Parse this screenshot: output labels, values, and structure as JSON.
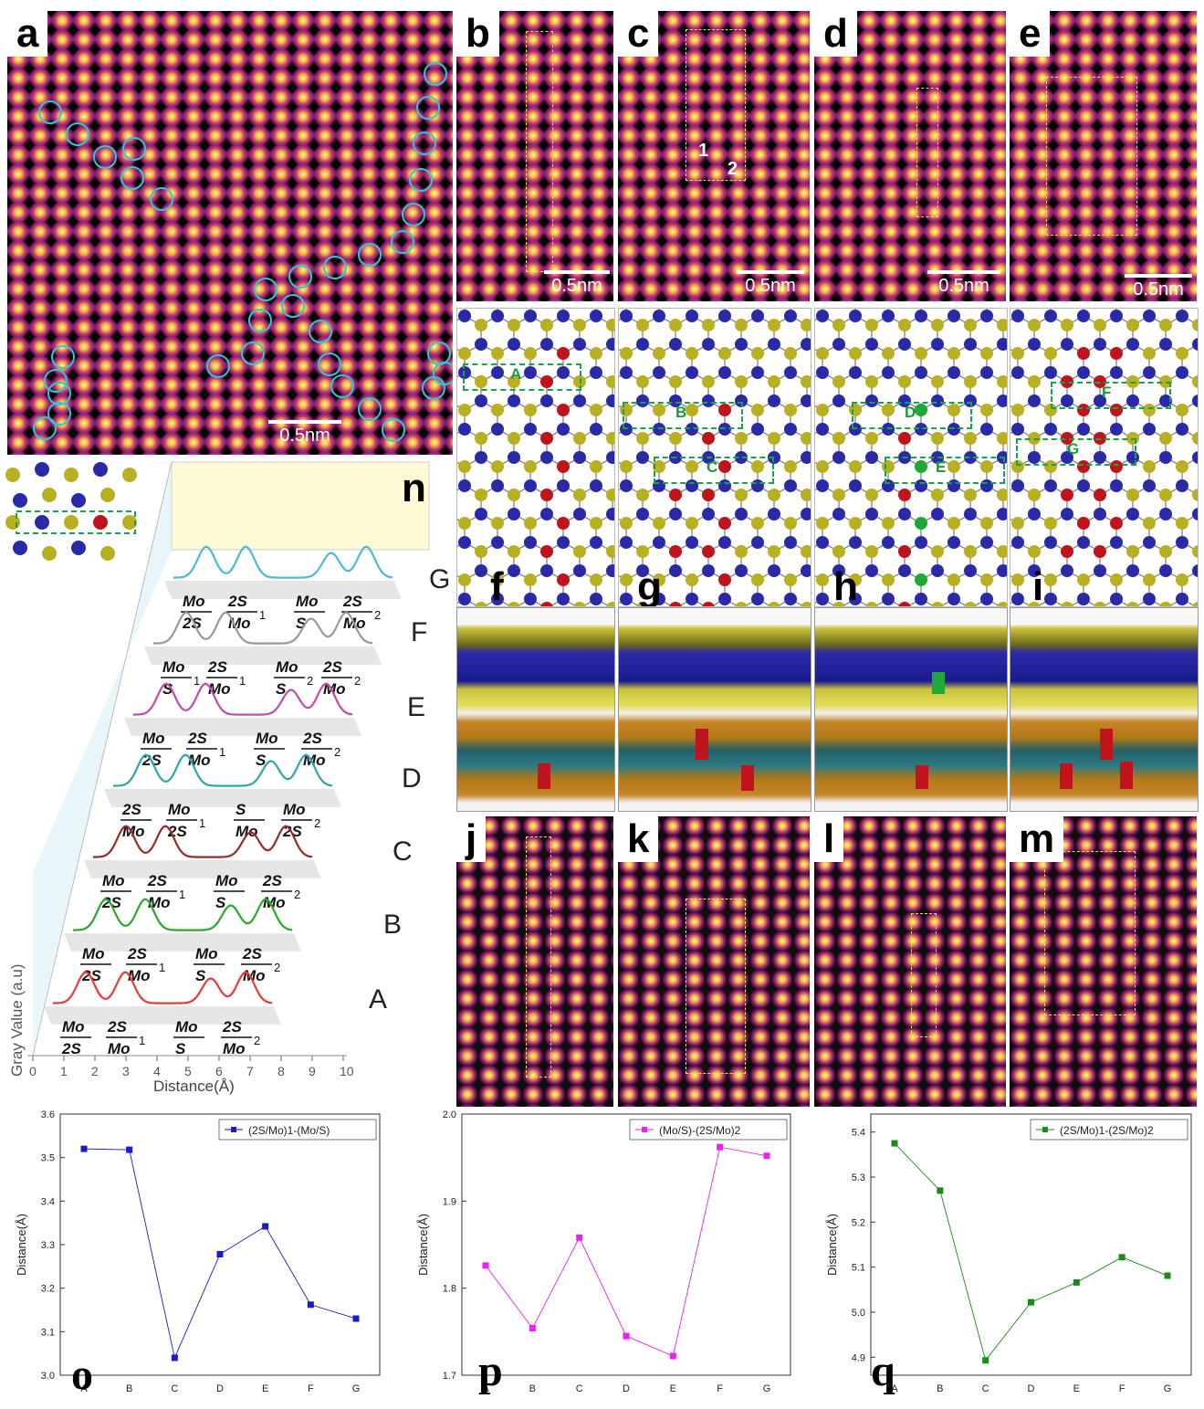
{
  "panels": {
    "a": "a",
    "b": "b",
    "c": "c",
    "d": "d",
    "e": "e",
    "f": "f",
    "g": "g",
    "h": "h",
    "i": "i",
    "j": "j",
    "k": "k",
    "l": "l",
    "m": "m",
    "n": "n",
    "o": "o",
    "p": "p",
    "q": "q"
  },
  "scalebar": "0.5nm",
  "atom_numbers": [
    "1",
    "2"
  ],
  "box_labels": [
    "A",
    "B",
    "C",
    "D",
    "E",
    "F",
    "G"
  ],
  "colors": {
    "mo": "#2a2aa8",
    "s": "#b8b020",
    "defect_red": "#c0141c",
    "defect_green": "#1ea83a",
    "box": "#1aa24a"
  },
  "profile": {
    "ylabel": "Gray Value (a.u)",
    "xlabel": "Distance(Å)",
    "xticks": [
      "0",
      "1",
      "2",
      "3",
      "4",
      "5",
      "6",
      "7",
      "8",
      "9",
      "10"
    ],
    "row_letters": [
      "G",
      "F",
      "E",
      "D",
      "C",
      "B",
      "A"
    ]
  },
  "chart_data": [
    {
      "type": "line",
      "panel": "o",
      "categories": [
        "A",
        "B",
        "C",
        "D",
        "E",
        "F",
        "G"
      ],
      "series": [
        {
          "name": "(2S/Mo)1-(Mo/S)",
          "values": [
            3.52,
            3.518,
            3.04,
            3.278,
            3.342,
            3.162,
            3.13
          ],
          "color": "#1a1ad0"
        }
      ],
      "ylabel": "Distance(Å)",
      "ylim": [
        3.0,
        3.6
      ],
      "yticks": [
        "3.0",
        "3.1",
        "3.2",
        "3.3",
        "3.4",
        "3.5",
        "3.6"
      ]
    },
    {
      "type": "line",
      "panel": "p",
      "categories": [
        "A",
        "B",
        "C",
        "D",
        "E",
        "F",
        "G"
      ],
      "series": [
        {
          "name": "(Mo/S)-(2S/Mo)2",
          "values": [
            1.826,
            1.754,
            1.858,
            1.745,
            1.722,
            1.962,
            1.952
          ],
          "color": "#ee22ee"
        }
      ],
      "ylabel": "Distance(Å)",
      "ylim": [
        1.7,
        2.0
      ],
      "yticks": [
        "1.7",
        "1.8",
        "1.9",
        "2.0"
      ]
    },
    {
      "type": "line",
      "panel": "q",
      "categories": [
        "A",
        "B",
        "C",
        "D",
        "E",
        "F",
        "G"
      ],
      "series": [
        {
          "name": "(2S/Mo)1-(2S/Mo)2",
          "values": [
            5.375,
            5.27,
            4.893,
            5.022,
            5.066,
            5.122,
            5.081
          ],
          "color": "#1a8a1a"
        }
      ],
      "ylabel": "Distance(Å)",
      "ylim": [
        4.86,
        5.44
      ],
      "yticks": [
        "4.9",
        "5.0",
        "5.1",
        "5.2",
        "5.3",
        "5.4"
      ]
    }
  ]
}
